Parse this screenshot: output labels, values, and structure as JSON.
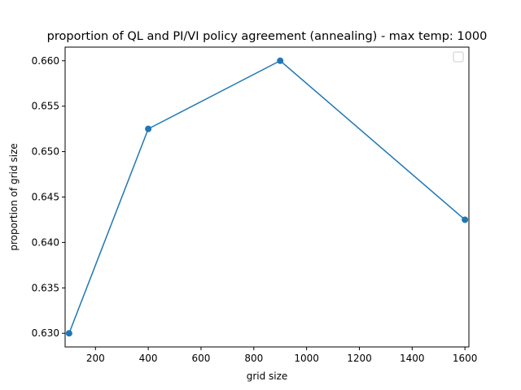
{
  "chart_data": {
    "type": "line",
    "title": "proportion of QL and PI/VI policy agreement (annealing) - max temp: 1000",
    "xlabel": "grid size",
    "ylabel": "proportion of grid size",
    "xlim": [
      85,
      1615
    ],
    "ylim": [
      0.6285,
      0.6615
    ],
    "xticks": [
      200,
      400,
      600,
      800,
      1000,
      1200,
      1400,
      1600
    ],
    "xtick_labels": [
      "200",
      "400",
      "600",
      "800",
      "1000",
      "1200",
      "1400",
      "1600"
    ],
    "yticks": [
      0.63,
      0.635,
      0.64,
      0.645,
      0.65,
      0.655,
      0.66
    ],
    "ytick_labels": [
      "0.630",
      "0.635",
      "0.640",
      "0.645",
      "0.650",
      "0.655",
      "0.660"
    ],
    "series": [
      {
        "x": [
          100,
          400,
          900,
          1600
        ],
        "y": [
          0.63,
          0.6525,
          0.66,
          0.6425
        ],
        "color": "#1f77b4",
        "marker": "circle"
      }
    ],
    "legend": {
      "placement": "top-right",
      "entries": []
    },
    "grid": false
  }
}
